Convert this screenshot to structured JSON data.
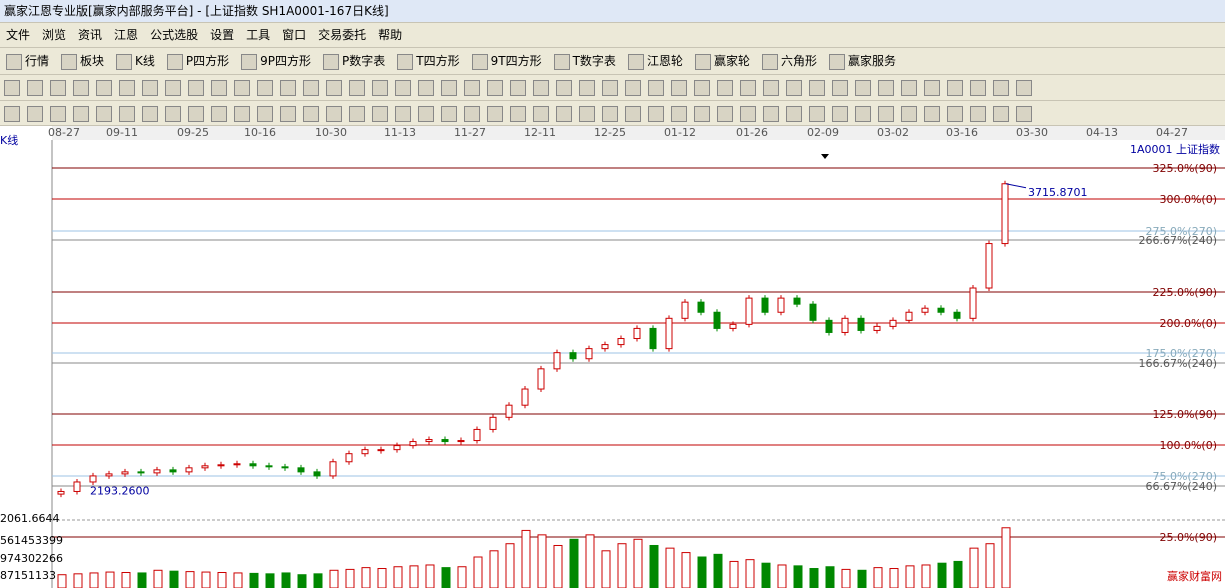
{
  "window_title": "赢家江恩专业版[赢家内部服务平台] - [上证指数  SH1A0001-167日K线]",
  "menu": [
    "文件",
    "浏览",
    "资讯",
    "江恩",
    "公式选股",
    "设置",
    "工具",
    "窗口",
    "交易委托",
    "帮助"
  ],
  "toolbar": [
    "行情",
    "板块",
    "K线",
    "P四方形",
    "9P四方形",
    "P数字表",
    "T四方形",
    "9T四方形",
    "T数字表",
    "江恩轮",
    "赢家轮",
    "六角形",
    "赢家服务"
  ],
  "chart": {
    "panel_label": "K线",
    "symbol": "1A0001  上证指数",
    "dates": [
      "08-27",
      "09-11",
      "09-25",
      "10-16",
      "10-30",
      "11-13",
      "11-27",
      "12-11",
      "12-25",
      "01-12",
      "01-26",
      "02-09",
      "03-02",
      "03-16",
      "03-30",
      "04-13",
      "04-27"
    ],
    "ratio_lines": [
      "325.0%(90)",
      "300.0%(0)",
      "275.0%(270)",
      "266.67%(240)",
      "225.0%(90)",
      "200.0%(0)",
      "175.0%(270)",
      "166.67%(240)",
      "125.0%(90)",
      "100.0%(0)",
      "75.0%(270)",
      "66.67%(240)",
      "25.0%(90)"
    ],
    "high_label": "3715.8701",
    "low_label": "2193.2600",
    "axis_low": "2061.6644",
    "volume_labels": [
      "561453399",
      "974302266",
      "87151133"
    ],
    "ylim": [
      2061.6644,
      3893
    ],
    "first_open": 2180,
    "closes": [
      2193,
      2240,
      2270,
      2280,
      2290,
      2285,
      2300,
      2290,
      2310,
      2320,
      2325,
      2330,
      2320,
      2315,
      2310,
      2290,
      2270,
      2340,
      2380,
      2400,
      2400,
      2420,
      2440,
      2450,
      2440,
      2445,
      2500,
      2560,
      2620,
      2700,
      2800,
      2880,
      2850,
      2900,
      2920,
      2950,
      3000,
      2900,
      3050,
      3130,
      3080,
      3000,
      3020,
      3150,
      3080,
      3150,
      3120,
      3040,
      2980,
      3050,
      2990,
      3010,
      3040,
      3080,
      3100,
      3080,
      3050,
      3200,
      3420,
      3716
    ],
    "volume_max": 700000000,
    "volumes": [
      150000000,
      160000000,
      170000000,
      180000000,
      175000000,
      170000000,
      200000000,
      190000000,
      185000000,
      180000000,
      175000000,
      170000000,
      165000000,
      160000000,
      170000000,
      150000000,
      160000000,
      200000000,
      210000000,
      230000000,
      220000000,
      240000000,
      250000000,
      260000000,
      230000000,
      240000000,
      350000000,
      420000000,
      500000000,
      650000000,
      600000000,
      480000000,
      550000000,
      600000000,
      420000000,
      500000000,
      550000000,
      480000000,
      450000000,
      400000000,
      350000000,
      380000000,
      300000000,
      320000000,
      280000000,
      260000000,
      250000000,
      220000000,
      240000000,
      210000000,
      200000000,
      230000000,
      220000000,
      250000000,
      260000000,
      280000000,
      300000000,
      450000000,
      500000000,
      680000000
    ]
  }
}
